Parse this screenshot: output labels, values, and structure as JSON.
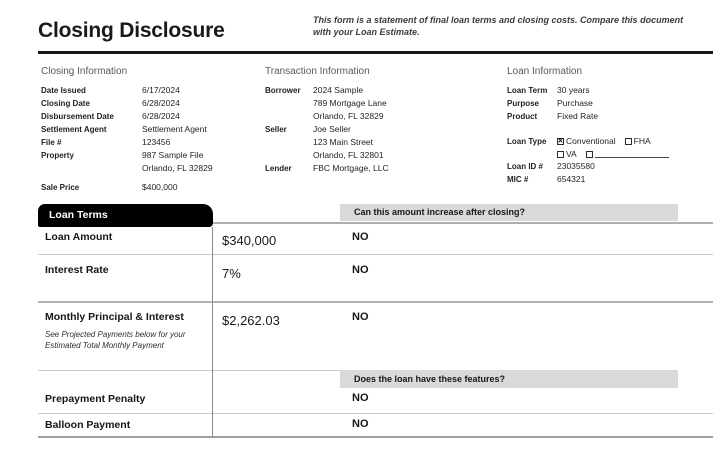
{
  "header": {
    "title": "Closing Disclosure",
    "note": "This form is a statement of final loan terms and closing costs. Compare this document with your Loan Estimate."
  },
  "closing_information": {
    "heading": "Closing Information",
    "rows": [
      {
        "label": "Date Issued",
        "value": "6/17/2024"
      },
      {
        "label": "Closing Date",
        "value": "6/28/2024"
      },
      {
        "label": "Disbursement Date",
        "value": "6/28/2024"
      },
      {
        "label": "Settlement Agent",
        "value": "Settlement Agent"
      },
      {
        "label": "File #",
        "value": "123456"
      },
      {
        "label": "Property",
        "value": "987 Sample File\nOrlando, FL  32829"
      },
      {
        "label": "Sale Price",
        "value": "$400,000"
      }
    ]
  },
  "transaction_information": {
    "heading": "Transaction Information",
    "rows": [
      {
        "label": "Borrower",
        "value": "2024 Sample\n789 Mortgage Lane\nOrlando, FL 32829"
      },
      {
        "label": "Seller",
        "value": "Joe Seller\n123 Main Street\nOrlando, FL  32801"
      },
      {
        "label": "Lender",
        "value": "FBC Mortgage, LLC"
      }
    ]
  },
  "loan_information": {
    "heading": "Loan Information",
    "rows": [
      {
        "label": "Loan Term",
        "value": "30 years"
      },
      {
        "label": "Purpose",
        "value": "Purchase"
      },
      {
        "label": "Product",
        "value": "Fixed Rate"
      }
    ],
    "loan_type": {
      "label": "Loan Type",
      "options": [
        {
          "label": "Conventional",
          "checked": true
        },
        {
          "label": "FHA",
          "checked": false
        },
        {
          "label": "VA",
          "checked": false
        },
        {
          "label": "",
          "checked": false,
          "blank_line": true
        }
      ]
    },
    "loan_id": {
      "label": "Loan ID #",
      "value": "23035580"
    },
    "mic": {
      "label": "MIC #",
      "value": "654321"
    }
  },
  "loan_terms": {
    "tab_label": "Loan Terms",
    "increase_question": "Can this amount increase after closing?",
    "rows": [
      {
        "label": "Loan Amount",
        "value": "$340,000",
        "answer": "NO"
      },
      {
        "label": "Interest Rate",
        "value": "7%",
        "answer": "NO"
      },
      {
        "label": "Monthly Principal & Interest",
        "value": "$2,262.03",
        "answer": "NO",
        "note": "See Projected Payments below for your Estimated Total Monthly Payment"
      }
    ],
    "features_question": "Does the loan have these features?",
    "feature_rows": [
      {
        "label": "Prepayment Penalty",
        "answer": "NO"
      },
      {
        "label": "Balloon Payment",
        "answer": "NO"
      }
    ]
  },
  "icons": {
    "checked_mark": "✕"
  },
  "colors": {
    "tab_bg": "#000000",
    "question_bar_bg": "#d9d9d9",
    "rule": "#161616",
    "text": "#231f20"
  }
}
